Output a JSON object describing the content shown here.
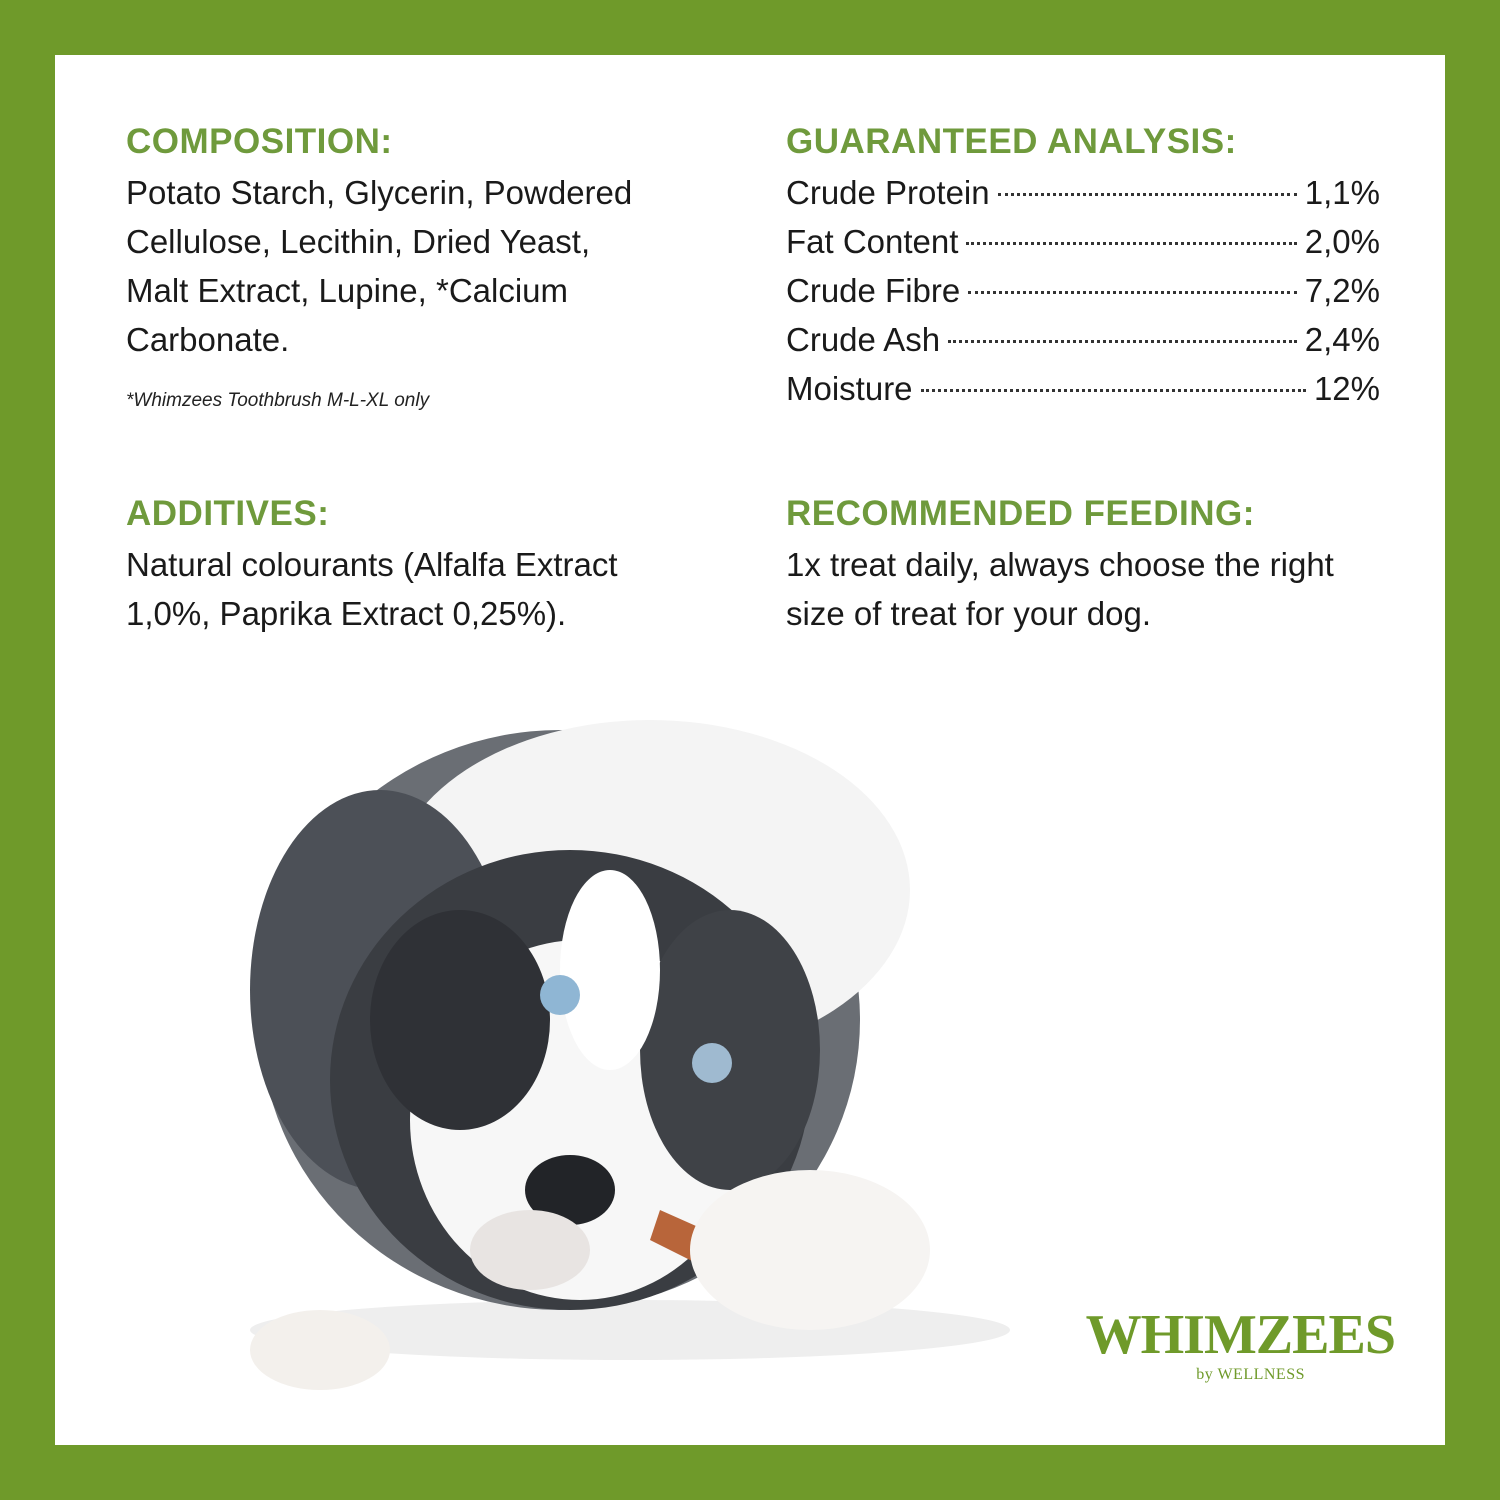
{
  "composition": {
    "heading": "COMPOSITION:",
    "lines": [
      "Potato Starch, Glycerin, Powdered",
      "Cellulose, Lecithin, Dried Yeast,",
      "Malt Extract, Lupine, *Calcium",
      "Carbonate."
    ],
    "footnote": "*Whimzees Toothbrush M-L-XL only"
  },
  "guaranteed_analysis": {
    "heading": "GUARANTEED ANALYSIS:",
    "rows": [
      {
        "label": "Crude Protein",
        "value": "1,1%"
      },
      {
        "label": "Fat Content",
        "value": "2,0%"
      },
      {
        "label": "Crude Fibre",
        "value": "7,2%"
      },
      {
        "label": "Crude Ash",
        "value": "2,4%"
      },
      {
        "label": "Moisture",
        "value": "12%"
      }
    ]
  },
  "additives": {
    "heading": "ADDITIVES:",
    "lines": [
      "Natural colourants (Alfalfa Extract",
      "1,0%, Paprika Extract 0,25%)."
    ]
  },
  "recommended_feeding": {
    "heading": "RECOMMENDED FEEDING:",
    "lines": [
      "1x treat daily, always choose the right",
      "size of treat for your dog."
    ]
  },
  "logo": {
    "brand": "WHIMZEES",
    "sub": "by WELLNESS"
  },
  "colors": {
    "border": "#6f9a2a",
    "heading": "#6f9a3c",
    "text": "#1a1a1a"
  }
}
